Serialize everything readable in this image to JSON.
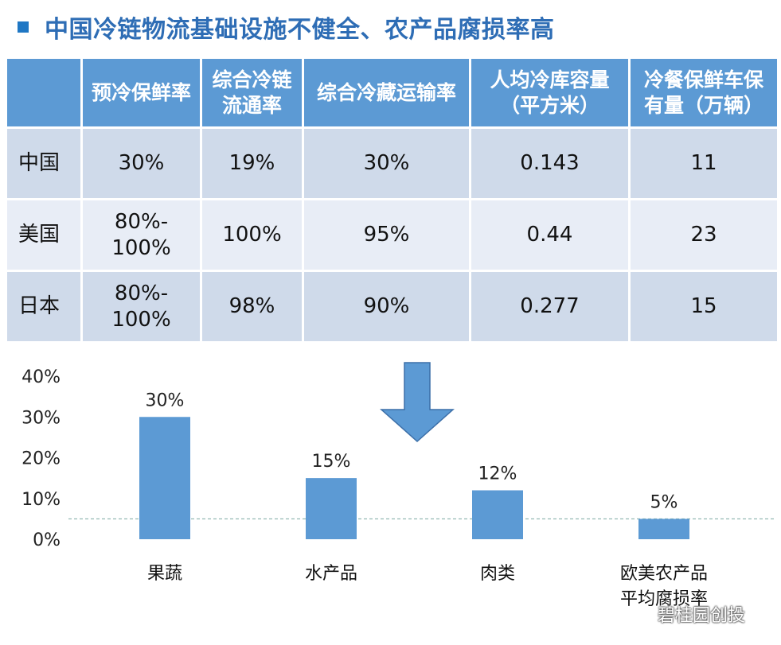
{
  "title": "中国冷链物流基础设施不健全、农产品腐损率高",
  "table": {
    "headers": [
      "",
      "预冷保鲜率",
      "综合冷链\n流通率",
      "综合冷藏运输率",
      "人均冷库容量\n（平方米）",
      "冷餐保鲜车保\n有量（万辆）"
    ],
    "rows": [
      [
        "中国",
        "30%",
        "19%",
        "30%",
        "0.143",
        "11"
      ],
      [
        "美国",
        "80%-\n100%",
        "100%",
        "95%",
        "0.44",
        "23"
      ],
      [
        "日本",
        "80%-\n100%",
        "98%",
        "90%",
        "0.277",
        "15"
      ]
    ]
  },
  "chart_data": {
    "type": "bar",
    "categories": [
      "果蔬",
      "水产品",
      "肉类",
      "欧美农产品\n平均腐损率"
    ],
    "values": [
      30,
      15,
      12,
      5
    ],
    "value_labels": [
      "30%",
      "15%",
      "12%",
      "5%"
    ],
    "yticks": [
      "0%",
      "10%",
      "20%",
      "30%",
      "40%"
    ],
    "ylim": [
      0,
      40
    ],
    "bar_color": "#5c9ad4",
    "reference_line": 5,
    "reference_line_color": "#7aa8a0",
    "arrow_color": "#5c9ad4"
  },
  "watermark": "碧桂园创投"
}
